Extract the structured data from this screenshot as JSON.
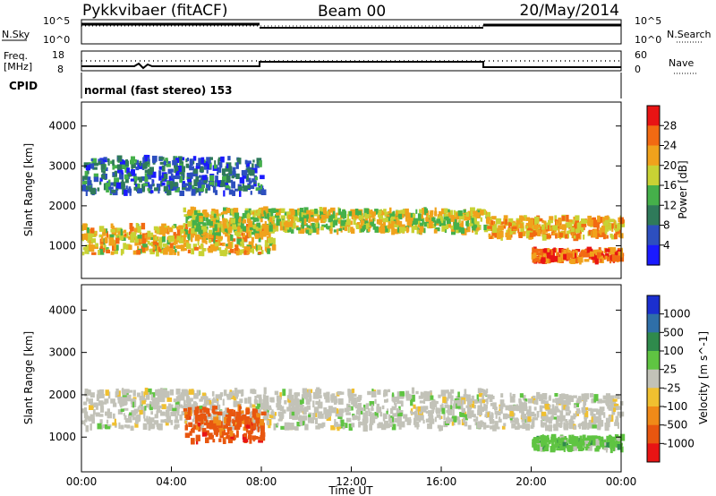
{
  "header": {
    "title": "Pykkvibaer (fitACF)",
    "beam": "Beam 00",
    "date": "20/May/2014"
  },
  "top_panels": {
    "nsky_label": "N.Sky",
    "nsky_ticks": [
      "10^5",
      "10^0"
    ],
    "nsearch_label": "N.Search",
    "nsearch_ticks": [
      "10^5",
      "10^0"
    ],
    "freq_label": "Freq.",
    "freq_unit": "[MHz]",
    "freq_ticks": [
      "18",
      "8"
    ],
    "nave_label": "Nave",
    "nave_ticks": [
      "60",
      "0"
    ],
    "cpid_label": "CPID",
    "cpid_text": "normal (fast stereo) 153"
  },
  "chart_data": [
    {
      "type": "heatmap",
      "name": "power",
      "ylabel": "Slant Range [km]",
      "yticks": [
        "1000",
        "2000",
        "3000",
        "4000"
      ],
      "ylim": [
        180,
        4600
      ],
      "xlim_hours": [
        0,
        24
      ],
      "colorbar_label": "Power [dB]",
      "colorbar_ticks": [
        "4",
        "8",
        "12",
        "16",
        "20",
        "24",
        "28"
      ],
      "colorbar_colors": [
        "#1a1aff",
        "#2d4fbf",
        "#2f7a5a",
        "#45b04a",
        "#c8d234",
        "#f0a21c",
        "#f26a12",
        "#e81414"
      ],
      "echo_bands": [
        {
          "t0": 0.0,
          "t1": 8.5,
          "r0": 800,
          "r1": 1500,
          "level": 18
        },
        {
          "t0": 4.5,
          "t1": 18.0,
          "r0": 1350,
          "r1": 1900,
          "level": 16
        },
        {
          "t0": 18.0,
          "t1": 24.0,
          "r0": 1200,
          "r1": 1700,
          "level": 20
        },
        {
          "t0": 20.0,
          "t1": 24.0,
          "r0": 600,
          "r1": 900,
          "level": 24
        },
        {
          "t0": 0.0,
          "t1": 8.0,
          "r0": 2300,
          "r1": 3200,
          "level": 6
        }
      ]
    },
    {
      "type": "heatmap",
      "name": "velocity",
      "ylabel": "Slant Range [km]",
      "yticks": [
        "1000",
        "2000",
        "3000",
        "4000"
      ],
      "ylim": [
        180,
        4600
      ],
      "xlim_hours": [
        0,
        24
      ],
      "colorbar_label": "Velocity [m s^-1]",
      "colorbar_ticks": [
        "1000",
        "500",
        "100",
        "25",
        "-25",
        "-100",
        "-500",
        "-1000"
      ],
      "colorbar_colors": [
        "#1b2fd0",
        "#2f6fa8",
        "#2f8a4c",
        "#5fc442",
        "#c2c2b8",
        "#f0c030",
        "#f08a18",
        "#e8560f",
        "#e81414"
      ],
      "xlabel": "Time UT",
      "xticks": [
        "00:00",
        "04:00",
        "08:00",
        "12:00",
        "16:00",
        "20:00",
        "00:00"
      ],
      "echo_bands": [
        {
          "t0": 0.0,
          "t1": 18.0,
          "r0": 1200,
          "r1": 2100,
          "velocity": 0
        },
        {
          "t0": 4.5,
          "t1": 8.0,
          "r0": 900,
          "r1": 1700,
          "velocity": -500
        },
        {
          "t0": 18.0,
          "t1": 24.0,
          "r0": 1200,
          "r1": 2000,
          "velocity": 0
        },
        {
          "t0": 20.0,
          "t1": 24.0,
          "r0": 700,
          "r1": 1000,
          "velocity": 100
        }
      ]
    }
  ]
}
